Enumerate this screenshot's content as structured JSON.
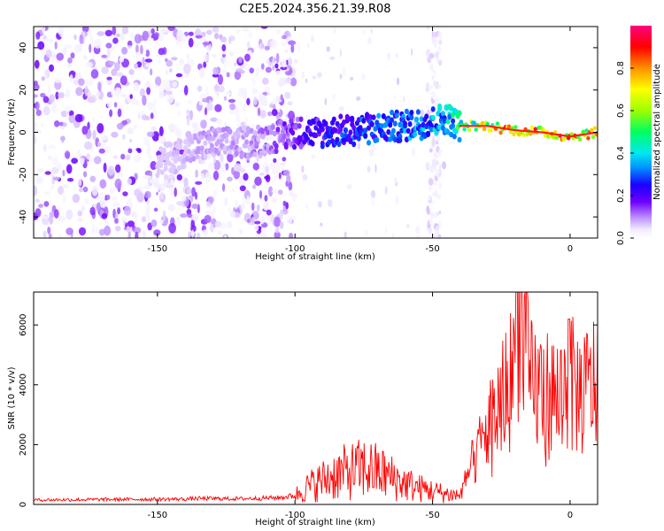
{
  "title": "C2E5.2024.356.21.39.R08",
  "chart_data": [
    {
      "type": "heatmap",
      "xlabel": "Height of straight line (km)",
      "ylabel": "Frequency (Hz)",
      "xlim": [
        -195,
        10
      ],
      "ylim": [
        -50,
        50
      ],
      "xticks": [
        -150,
        -100,
        -50,
        0
      ],
      "yticks": [
        -40,
        -20,
        0,
        20,
        40
      ],
      "colorbar": {
        "label": "Normalized spectral amplitude",
        "range": [
          0,
          1
        ],
        "ticks": [
          "0.0",
          "0.2",
          "0.4",
          "0.6",
          "0.8"
        ],
        "tick_values": [
          0,
          0.2,
          0.4,
          0.6,
          0.8
        ]
      },
      "ridge_track": {
        "x": [
          -150,
          -140,
          -130,
          -120,
          -110,
          -100,
          -90,
          -80,
          -70,
          -60,
          -50,
          -45,
          -40,
          -30,
          -20,
          -10,
          0,
          5,
          10
        ],
        "frequency": [
          -14,
          -9,
          -5,
          -5,
          -3,
          0,
          0,
          1,
          2,
          3,
          5,
          7,
          3,
          3,
          1,
          0,
          -2,
          -1,
          0
        ],
        "amplitude": [
          0.05,
          0.08,
          0.1,
          0.1,
          0.12,
          0.18,
          0.25,
          0.3,
          0.32,
          0.35,
          0.4,
          0.45,
          0.55,
          0.75,
          0.9,
          0.9,
          0.9,
          0.85,
          0.9
        ]
      },
      "grid": false
    },
    {
      "type": "line",
      "xlabel": "Height of straight line (km)",
      "ylabel": "SNR (10 * v/v)",
      "xlim": [
        -195,
        10
      ],
      "ylim": [
        0,
        7100
      ],
      "xticks": [
        -150,
        -100,
        -50,
        0
      ],
      "yticks": [
        0,
        2000,
        4000,
        6000
      ],
      "series": [
        {
          "color": "#ff0000",
          "x": [
            -195,
            -180,
            -160,
            -140,
            -135,
            -120,
            -105,
            -100,
            -95,
            -90,
            -85,
            -80,
            -75,
            -70,
            -65,
            -60,
            -55,
            -50,
            -45,
            -40,
            -35,
            -30,
            -25,
            -20,
            -18,
            -15,
            -10,
            -5,
            0,
            5,
            10
          ],
          "y": [
            150,
            160,
            170,
            180,
            200,
            190,
            230,
            300,
            600,
            800,
            1000,
            1100,
            1200,
            1100,
            900,
            700,
            550,
            450,
            350,
            300,
            1500,
            2500,
            3500,
            4500,
            7100,
            4000,
            3800,
            3600,
            4000,
            3700,
            4200
          ]
        }
      ],
      "grid": false
    }
  ]
}
